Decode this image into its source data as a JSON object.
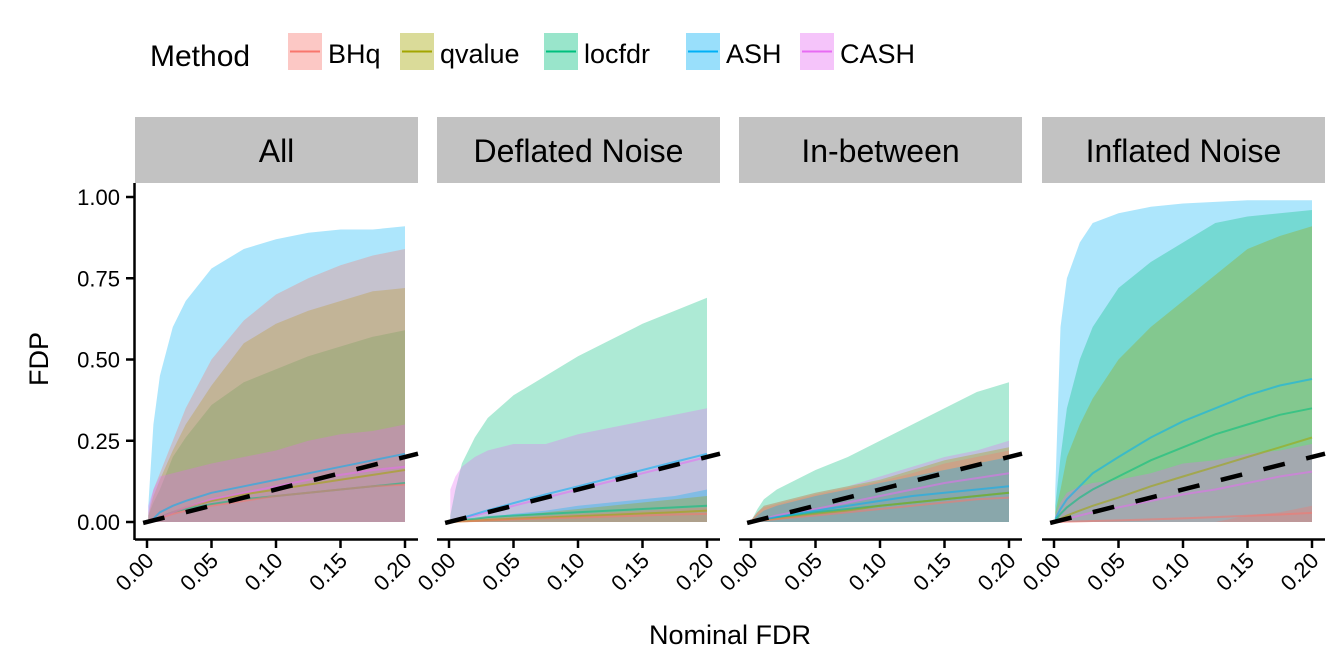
{
  "chart_data": {
    "type": "area",
    "title": "",
    "xlabel": "Nominal FDR",
    "ylabel": "FDP",
    "xlim": [
      0,
      0.2
    ],
    "ylim": [
      0,
      1
    ],
    "x_ticks": [
      "0.00",
      "0.05",
      "0.10",
      "0.15",
      "0.20"
    ],
    "y_ticks": [
      "0.00",
      "0.25",
      "0.50",
      "0.75",
      "1.00"
    ],
    "grid": false,
    "legend": {
      "title": "Method",
      "position": "top-left",
      "entries": [
        {
          "name": "BHq",
          "color": "#F8766D"
        },
        {
          "name": "qvalue",
          "color": "#A3A500"
        },
        {
          "name": "locfdr",
          "color": "#00BF7D"
        },
        {
          "name": "ASH",
          "color": "#00B0F6"
        },
        {
          "name": "CASH",
          "color": "#E76BF3"
        }
      ]
    },
    "reference_line": {
      "type": "y=x",
      "style": "dashed",
      "color": "#000000"
    },
    "x": [
      0.001,
      0.005,
      0.01,
      0.02,
      0.03,
      0.05,
      0.075,
      0.1,
      0.125,
      0.15,
      0.175,
      0.2
    ],
    "panels": [
      {
        "name": "All",
        "series": [
          {
            "name": "ASH",
            "lower": [
              0,
              0,
              0,
              0,
              0,
              0,
              0,
              0,
              0,
              0,
              0,
              0
            ],
            "upper": [
              0.05,
              0.3,
              0.45,
              0.6,
              0.68,
              0.78,
              0.84,
              0.87,
              0.89,
              0.9,
              0.9,
              0.91
            ],
            "mean": [
              0.001,
              0.01,
              0.03,
              0.05,
              0.065,
              0.09,
              0.11,
              0.13,
              0.15,
              0.17,
              0.19,
              0.21
            ]
          },
          {
            "name": "locfdr",
            "lower": [
              0,
              0,
              0,
              0,
              0,
              0,
              0,
              0,
              0,
              0,
              0,
              0
            ],
            "upper": [
              0.02,
              0.06,
              0.1,
              0.2,
              0.26,
              0.36,
              0.43,
              0.47,
              0.51,
              0.54,
              0.57,
              0.59
            ],
            "mean": [
              0.001,
              0.005,
              0.015,
              0.03,
              0.04,
              0.055,
              0.07,
              0.08,
              0.09,
              0.1,
              0.11,
              0.12
            ]
          },
          {
            "name": "qvalue",
            "lower": [
              0,
              0,
              0,
              0,
              0,
              0,
              0,
              0,
              0,
              0,
              0,
              0
            ],
            "upper": [
              0.02,
              0.08,
              0.13,
              0.22,
              0.3,
              0.42,
              0.55,
              0.61,
              0.65,
              0.68,
              0.71,
              0.72
            ],
            "mean": [
              0.001,
              0.006,
              0.015,
              0.03,
              0.045,
              0.065,
              0.085,
              0.1,
              0.115,
              0.13,
              0.145,
              0.16
            ]
          },
          {
            "name": "BHq",
            "lower": [
              0,
              0,
              0,
              0,
              0,
              0,
              0,
              0,
              0,
              0,
              0,
              0
            ],
            "upper": [
              0.03,
              0.1,
              0.15,
              0.25,
              0.35,
              0.5,
              0.62,
              0.7,
              0.75,
              0.79,
              0.82,
              0.84
            ],
            "mean": [
              0.001,
              0.005,
              0.012,
              0.025,
              0.035,
              0.05,
              0.065,
              0.08,
              0.09,
              0.1,
              0.11,
              0.115
            ]
          },
          {
            "name": "CASH",
            "lower": [
              0,
              0,
              0,
              0,
              0,
              0,
              0,
              0,
              0,
              0,
              0,
              0
            ],
            "upper": [
              0.05,
              0.1,
              0.14,
              0.15,
              0.16,
              0.18,
              0.2,
              0.22,
              0.25,
              0.27,
              0.28,
              0.3
            ],
            "mean": [
              0.001,
              0.006,
              0.015,
              0.03,
              0.045,
              0.07,
              0.09,
              0.11,
              0.13,
              0.145,
              0.16,
              0.17
            ]
          }
        ]
      },
      {
        "name": "Deflated Noise",
        "series": [
          {
            "name": "locfdr",
            "lower": [
              0,
              0,
              0,
              0,
              0,
              0,
              0,
              0,
              0,
              0,
              0,
              0
            ],
            "upper": [
              0.02,
              0.1,
              0.18,
              0.26,
              0.32,
              0.39,
              0.45,
              0.51,
              0.56,
              0.61,
              0.65,
              0.69
            ],
            "mean": [
              0.001,
              0.003,
              0.006,
              0.01,
              0.015,
              0.02,
              0.025,
              0.03,
              0.035,
              0.04,
              0.045,
              0.05
            ]
          },
          {
            "name": "CASH",
            "lower": [
              0,
              0,
              0,
              0,
              0,
              0,
              0,
              0,
              0,
              0,
              0,
              0
            ],
            "upper": [
              0.1,
              0.14,
              0.17,
              0.2,
              0.22,
              0.24,
              0.24,
              0.27,
              0.29,
              0.31,
              0.33,
              0.35
            ],
            "mean": [
              0.001,
              0.005,
              0.01,
              0.02,
              0.03,
              0.05,
              0.075,
              0.1,
              0.125,
              0.15,
              0.175,
              0.2
            ]
          },
          {
            "name": "ASH",
            "lower": [
              0,
              0,
              0,
              0,
              0,
              0,
              0,
              0,
              0,
              0,
              0,
              0
            ],
            "upper": [
              0.002,
              0.005,
              0.008,
              0.01,
              0.015,
              0.025,
              0.035,
              0.05,
              0.06,
              0.07,
              0.08,
              0.1
            ],
            "mean": [
              0.001,
              0.006,
              0.012,
              0.024,
              0.036,
              0.058,
              0.085,
              0.11,
              0.135,
              0.16,
              0.185,
              0.21
            ]
          },
          {
            "name": "qvalue",
            "lower": [
              0,
              0,
              0,
              0,
              0,
              0,
              0,
              0,
              0,
              0,
              0,
              0
            ],
            "upper": [
              0.002,
              0.004,
              0.006,
              0.01,
              0.015,
              0.02,
              0.03,
              0.04,
              0.05,
              0.06,
              0.07,
              0.08
            ],
            "mean": [
              0,
              0.001,
              0.002,
              0.004,
              0.006,
              0.01,
              0.014,
              0.018,
              0.022,
              0.026,
              0.03,
              0.035
            ]
          },
          {
            "name": "BHq",
            "lower": [
              0,
              0,
              0,
              0,
              0,
              0,
              0,
              0,
              0,
              0,
              0,
              0
            ],
            "upper": [
              0.002,
              0.004,
              0.006,
              0.01,
              0.012,
              0.015,
              0.02,
              0.025,
              0.03,
              0.035,
              0.04,
              0.045
            ],
            "mean": [
              0,
              0.001,
              0.002,
              0.003,
              0.005,
              0.008,
              0.011,
              0.014,
              0.017,
              0.02,
              0.023,
              0.025
            ]
          }
        ]
      },
      {
        "name": "In-between",
        "series": [
          {
            "name": "locfdr",
            "lower": [
              0,
              0,
              0,
              0,
              0,
              0,
              0,
              0,
              0,
              0,
              0,
              0
            ],
            "upper": [
              0.01,
              0.04,
              0.07,
              0.1,
              0.12,
              0.16,
              0.2,
              0.25,
              0.3,
              0.35,
              0.4,
              0.43
            ],
            "mean": [
              0.001,
              0.004,
              0.008,
              0.015,
              0.02,
              0.03,
              0.04,
              0.05,
              0.06,
              0.07,
              0.08,
              0.09
            ]
          },
          {
            "name": "CASH",
            "lower": [
              0,
              0,
              0,
              0,
              0,
              0,
              0,
              0,
              0,
              0,
              0,
              0
            ],
            "upper": [
              0.01,
              0.03,
              0.05,
              0.06,
              0.07,
              0.09,
              0.11,
              0.14,
              0.17,
              0.2,
              0.22,
              0.25
            ],
            "mean": [
              0.001,
              0.005,
              0.01,
              0.02,
              0.028,
              0.04,
              0.06,
              0.08,
              0.1,
              0.12,
              0.135,
              0.15
            ]
          },
          {
            "name": "qvalue",
            "lower": [
              0,
              0,
              0,
              0,
              0,
              0,
              0,
              0,
              0,
              0,
              0,
              0
            ],
            "upper": [
              0.01,
              0.03,
              0.05,
              0.06,
              0.07,
              0.09,
              0.11,
              0.13,
              0.16,
              0.19,
              0.21,
              0.23
            ],
            "mean": [
              0.001,
              0.003,
              0.006,
              0.01,
              0.015,
              0.025,
              0.035,
              0.05,
              0.06,
              0.07,
              0.08,
              0.09
            ]
          },
          {
            "name": "BHq",
            "lower": [
              0,
              0,
              0,
              0,
              0,
              0,
              0,
              0,
              0,
              0,
              0,
              0
            ],
            "upper": [
              0.01,
              0.03,
              0.045,
              0.055,
              0.065,
              0.085,
              0.105,
              0.125,
              0.15,
              0.18,
              0.2,
              0.22
            ],
            "mean": [
              0.001,
              0.003,
              0.005,
              0.009,
              0.013,
              0.02,
              0.03,
              0.04,
              0.05,
              0.06,
              0.07,
              0.075
            ]
          },
          {
            "name": "ASH",
            "lower": [
              0,
              0,
              0,
              0,
              0,
              0,
              0,
              0,
              0,
              0,
              0,
              0
            ],
            "upper": [
              0.005,
              0.02,
              0.035,
              0.05,
              0.06,
              0.08,
              0.1,
              0.12,
              0.14,
              0.16,
              0.18,
              0.2
            ],
            "mean": [
              0.001,
              0.004,
              0.008,
              0.015,
              0.022,
              0.035,
              0.05,
              0.065,
              0.08,
              0.09,
              0.1,
              0.11
            ]
          }
        ]
      },
      {
        "name": "Inflated Noise",
        "series": [
          {
            "name": "ASH",
            "lower": [
              0,
              0,
              0,
              0,
              0,
              0,
              0,
              0,
              0,
              0,
              0,
              0
            ],
            "upper": [
              0.1,
              0.6,
              0.75,
              0.86,
              0.92,
              0.95,
              0.97,
              0.98,
              0.985,
              0.99,
              0.99,
              0.99
            ],
            "mean": [
              0.01,
              0.04,
              0.07,
              0.11,
              0.15,
              0.2,
              0.26,
              0.31,
              0.35,
              0.39,
              0.42,
              0.44
            ]
          },
          {
            "name": "locfdr",
            "lower": [
              0,
              0,
              0,
              0,
              0,
              0,
              0,
              0,
              0,
              0,
              0,
              0
            ],
            "upper": [
              0.05,
              0.2,
              0.35,
              0.5,
              0.6,
              0.72,
              0.8,
              0.86,
              0.92,
              0.94,
              0.95,
              0.96
            ],
            "mean": [
              0.005,
              0.025,
              0.045,
              0.075,
              0.1,
              0.14,
              0.19,
              0.23,
              0.27,
              0.3,
              0.33,
              0.35
            ]
          },
          {
            "name": "qvalue",
            "lower": [
              0,
              0,
              0,
              0,
              0,
              0,
              0,
              0,
              0,
              0,
              0,
              0
            ],
            "upper": [
              0.03,
              0.1,
              0.2,
              0.3,
              0.38,
              0.5,
              0.6,
              0.68,
              0.76,
              0.84,
              0.88,
              0.91
            ],
            "mean": [
              0.003,
              0.01,
              0.02,
              0.035,
              0.05,
              0.075,
              0.11,
              0.14,
              0.17,
              0.2,
              0.23,
              0.26
            ]
          },
          {
            "name": "CASH",
            "lower": [
              0,
              0,
              0,
              0,
              0,
              0,
              0,
              0,
              0,
              0,
              0,
              0
            ],
            "upper": [
              0.02,
              0.06,
              0.09,
              0.11,
              0.12,
              0.13,
              0.15,
              0.18,
              0.19,
              0.21,
              0.22,
              0.24
            ],
            "mean": [
              0.001,
              0.005,
              0.01,
              0.02,
              0.03,
              0.045,
              0.065,
              0.085,
              0.1,
              0.12,
              0.14,
              0.155
            ]
          },
          {
            "name": "BHq",
            "lower": [
              0,
              0,
              0,
              0,
              0,
              0,
              0,
              0,
              0,
              0,
              0,
              0
            ],
            "upper": [
              0,
              0,
              0,
              0,
              0,
              0,
              0,
              0,
              0,
              0.02,
              0.03,
              0.05
            ],
            "mean": [
              0,
              0,
              0.001,
              0.002,
              0.003,
              0.005,
              0.008,
              0.011,
              0.015,
              0.019,
              0.023,
              0.028
            ]
          }
        ]
      }
    ]
  }
}
